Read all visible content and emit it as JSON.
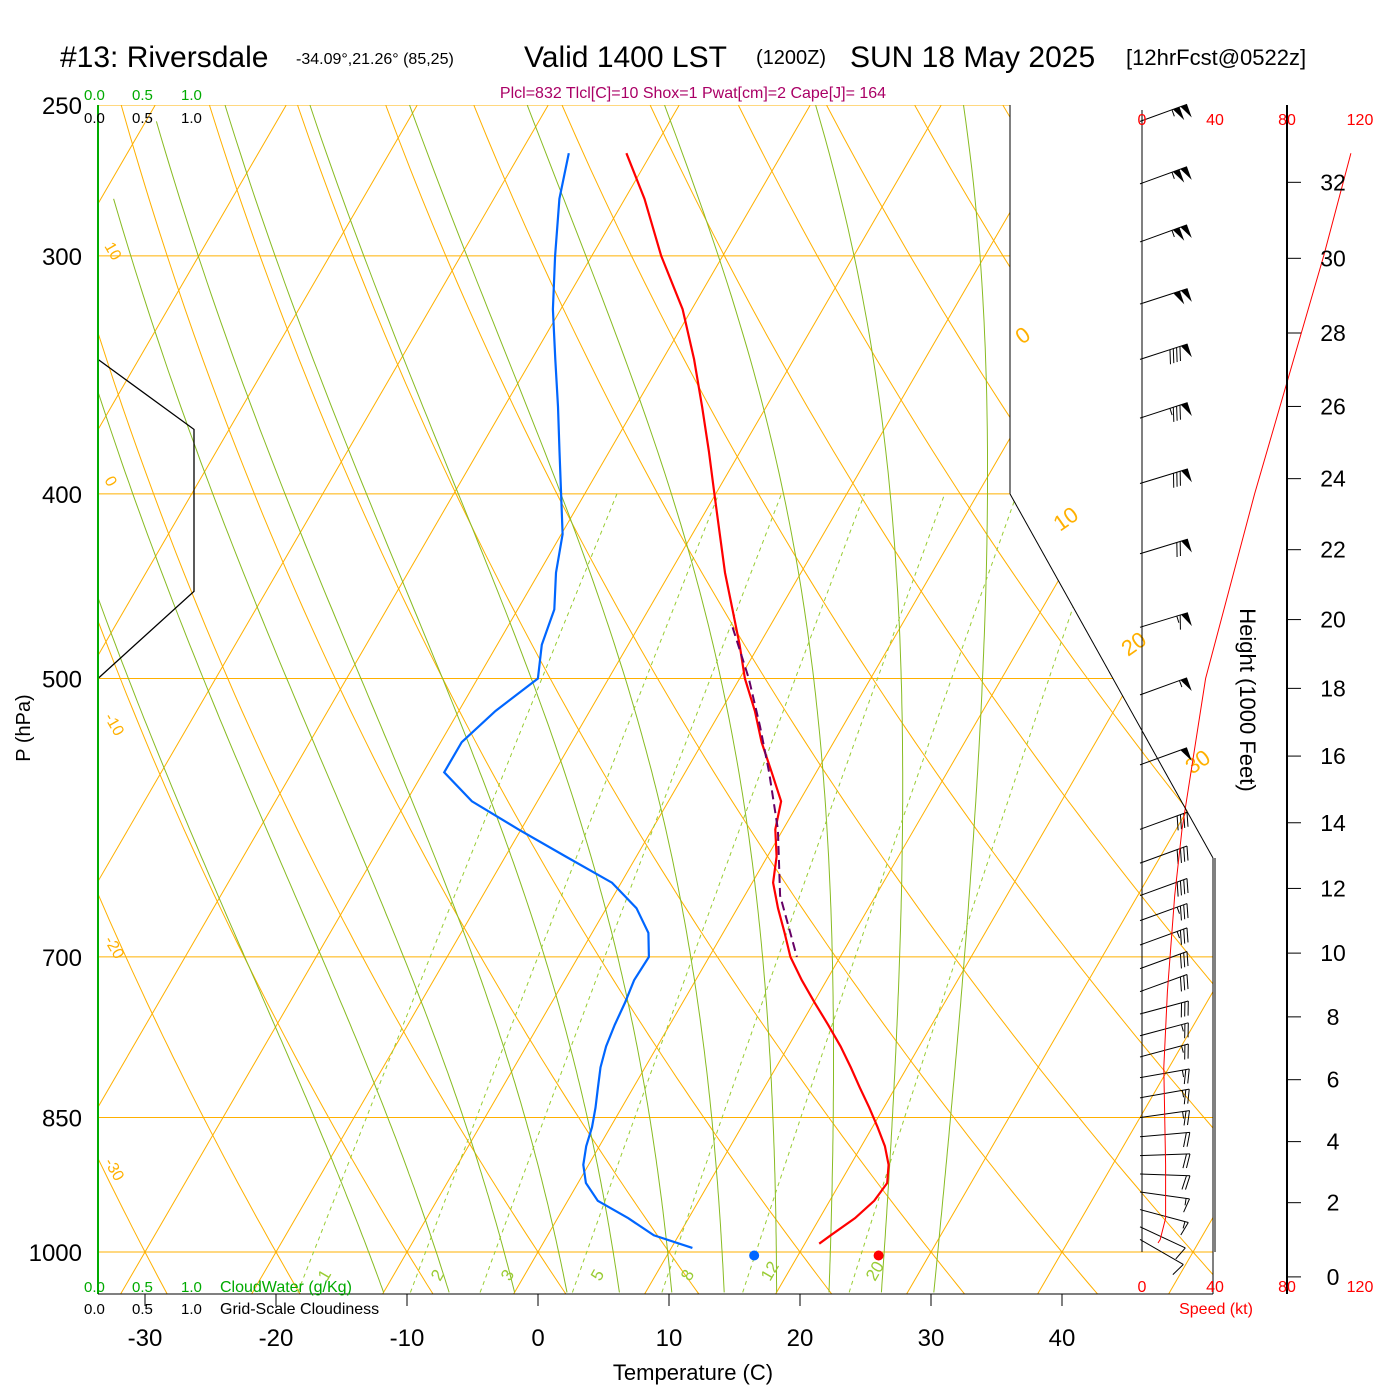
{
  "header": {
    "station": "#13: Riversdale",
    "coords": "-34.09°,21.26° (85,25)",
    "valid": "Valid 1400 LST",
    "zulu": "(1200Z)",
    "date": "SUN 18 May 2025",
    "forecast": "[12hrFcst@0522z]"
  },
  "indices": "Plcl=832 Tlcl[C]=10 Shox=1 Pwat[cm]=2 Cape[J]= 164",
  "cloud": {
    "scale_labels": [
      "0.0",
      "0.5",
      "1.0"
    ],
    "water_label": "CloudWater (g/Kg)",
    "cloudiness_label": "Grid-Scale Cloudiness"
  },
  "speed_axis": {
    "ticks": [
      "0",
      "40",
      "80",
      "120"
    ],
    "label": "Speed (kt)"
  },
  "colors": {
    "temperature": "#ff0000",
    "dewpoint": "#0066ff",
    "parcel": "#660066",
    "isotherms_isobars": "#ffb000",
    "dry_adiabats": "#99cc33",
    "moist_adiabats": "#88bb22",
    "mixing_ratio": "#99cc33",
    "cloudwater_axis": "#00aa00",
    "title_indices": "#aa0066",
    "speed": "#ff0000"
  },
  "chart_data": {
    "type": "skew-t",
    "xlabel": "Temperature (C)",
    "ylabel": "P (hPa)",
    "y2label": "Height (1000 Feet)",
    "x_ticks": [
      -30,
      -20,
      -10,
      0,
      10,
      20,
      30,
      40
    ],
    "p_levels": [
      250,
      300,
      400,
      500,
      700,
      850,
      1000
    ],
    "height_ticks_kft": [
      0,
      2,
      4,
      6,
      8,
      10,
      12,
      14,
      16,
      18,
      20,
      22,
      24,
      26,
      28,
      30,
      32
    ],
    "isotherm_labels": [
      "10",
      "0",
      "-10",
      "-20",
      "-30"
    ],
    "theta_labels": [
      "0",
      "10",
      "20",
      "30"
    ],
    "mixing_ratio_labels": [
      "1",
      "2",
      "3",
      "5",
      "8",
      "12",
      "20"
    ],
    "temperature_profile": [
      {
        "p": 265,
        "t": -41.9
      },
      {
        "p": 280,
        "t": -38.5
      },
      {
        "p": 300,
        "t": -34.7
      },
      {
        "p": 320,
        "t": -30.7
      },
      {
        "p": 340,
        "t": -27.6
      },
      {
        "p": 360,
        "t": -24.9
      },
      {
        "p": 380,
        "t": -22.4
      },
      {
        "p": 400,
        "t": -20.1
      },
      {
        "p": 420,
        "t": -17.9
      },
      {
        "p": 440,
        "t": -15.8
      },
      {
        "p": 460,
        "t": -13.6
      },
      {
        "p": 480,
        "t": -11.5
      },
      {
        "p": 500,
        "t": -9.6
      },
      {
        "p": 520,
        "t": -7.4
      },
      {
        "p": 540,
        "t": -5.5
      },
      {
        "p": 560,
        "t": -3.4
      },
      {
        "p": 580,
        "t": -1.4
      },
      {
        "p": 600,
        "t": -0.6
      },
      {
        "p": 620,
        "t": 0.7
      },
      {
        "p": 640,
        "t": 1.6
      },
      {
        "p": 660,
        "t": 3.1
      },
      {
        "p": 680,
        "t": 4.7
      },
      {
        "p": 700,
        "t": 6.2
      },
      {
        "p": 720,
        "t": 8.1
      },
      {
        "p": 740,
        "t": 10.1
      },
      {
        "p": 760,
        "t": 12.1
      },
      {
        "p": 780,
        "t": 14.0
      },
      {
        "p": 800,
        "t": 15.7
      },
      {
        "p": 820,
        "t": 17.3
      },
      {
        "p": 840,
        "t": 18.9
      },
      {
        "p": 860,
        "t": 20.4
      },
      {
        "p": 880,
        "t": 21.8
      },
      {
        "p": 900,
        "t": 22.9
      },
      {
        "p": 920,
        "t": 23.6
      },
      {
        "p": 940,
        "t": 23.4
      },
      {
        "p": 960,
        "t": 22.7
      },
      {
        "p": 980,
        "t": 21.6
      },
      {
        "p": 990,
        "t": 21.1
      }
    ],
    "dewpoint_profile": [
      {
        "p": 265,
        "t": -46.3
      },
      {
        "p": 280,
        "t": -45.0
      },
      {
        "p": 300,
        "t": -42.8
      },
      {
        "p": 320,
        "t": -40.6
      },
      {
        "p": 340,
        "t": -38.2
      },
      {
        "p": 360,
        "t": -35.9
      },
      {
        "p": 380,
        "t": -33.8
      },
      {
        "p": 400,
        "t": -31.8
      },
      {
        "p": 420,
        "t": -29.9
      },
      {
        "p": 440,
        "t": -28.7
      },
      {
        "p": 460,
        "t": -27.2
      },
      {
        "p": 480,
        "t": -26.6
      },
      {
        "p": 500,
        "t": -25.4
      },
      {
        "p": 520,
        "t": -27.2
      },
      {
        "p": 540,
        "t": -28.4
      },
      {
        "p": 560,
        "t": -28.4
      },
      {
        "p": 580,
        "t": -25.0
      },
      {
        "p": 600,
        "t": -20.2
      },
      {
        "p": 620,
        "t": -15.4
      },
      {
        "p": 640,
        "t": -10.7
      },
      {
        "p": 660,
        "t": -7.7
      },
      {
        "p": 680,
        "t": -5.7
      },
      {
        "p": 700,
        "t": -4.6
      },
      {
        "p": 720,
        "t": -4.7
      },
      {
        "p": 740,
        "t": -4.4
      },
      {
        "p": 760,
        "t": -4.2
      },
      {
        "p": 780,
        "t": -3.9
      },
      {
        "p": 800,
        "t": -3.4
      },
      {
        "p": 820,
        "t": -2.7
      },
      {
        "p": 840,
        "t": -2.0
      },
      {
        "p": 860,
        "t": -1.4
      },
      {
        "p": 880,
        "t": -1.0
      },
      {
        "p": 900,
        "t": -0.4
      },
      {
        "p": 920,
        "t": 0.6
      },
      {
        "p": 940,
        "t": 2.3
      },
      {
        "p": 960,
        "t": 5.4
      },
      {
        "p": 980,
        "t": 8.1
      },
      {
        "p": 995,
        "t": 11.6
      }
    ],
    "parcel_profile": [
      {
        "p": 470,
        "t": -12.8
      },
      {
        "p": 500,
        "t": -9.3
      },
      {
        "p": 530,
        "t": -6.3
      },
      {
        "p": 560,
        "t": -3.6
      },
      {
        "p": 600,
        "t": -0.4
      },
      {
        "p": 650,
        "t": 2.7
      },
      {
        "p": 700,
        "t": 6.7
      }
    ],
    "surface_temperature": {
      "p": 997,
      "t": 26
    },
    "surface_dewpoint": {
      "p": 997,
      "t": 16.5
    },
    "wind_barbs": [
      {
        "p": 255,
        "dir": 290,
        "kt": 105
      },
      {
        "p": 275,
        "dir": 290,
        "kt": 105
      },
      {
        "p": 295,
        "dir": 290,
        "kt": 105
      },
      {
        "p": 318,
        "dir": 288,
        "kt": 100
      },
      {
        "p": 340,
        "dir": 288,
        "kt": 90
      },
      {
        "p": 365,
        "dir": 288,
        "kt": 85
      },
      {
        "p": 395,
        "dir": 287,
        "kt": 80
      },
      {
        "p": 430,
        "dir": 287,
        "kt": 70
      },
      {
        "p": 470,
        "dir": 287,
        "kt": 65
      },
      {
        "p": 510,
        "dir": 290,
        "kt": 55
      },
      {
        "p": 555,
        "dir": 290,
        "kt": 50
      },
      {
        "p": 600,
        "dir": 290,
        "kt": 40
      },
      {
        "p": 625,
        "dir": 290,
        "kt": 40
      },
      {
        "p": 650,
        "dir": 290,
        "kt": 40
      },
      {
        "p": 670,
        "dir": 290,
        "kt": 35
      },
      {
        "p": 690,
        "dir": 290,
        "kt": 35
      },
      {
        "p": 710,
        "dir": 290,
        "kt": 30
      },
      {
        "p": 730,
        "dir": 290,
        "kt": 30
      },
      {
        "p": 750,
        "dir": 285,
        "kt": 30
      },
      {
        "p": 770,
        "dir": 285,
        "kt": 25
      },
      {
        "p": 790,
        "dir": 285,
        "kt": 25
      },
      {
        "p": 810,
        "dir": 280,
        "kt": 25
      },
      {
        "p": 830,
        "dir": 280,
        "kt": 25
      },
      {
        "p": 850,
        "dir": 278,
        "kt": 25
      },
      {
        "p": 870,
        "dir": 275,
        "kt": 20
      },
      {
        "p": 890,
        "dir": 272,
        "kt": 20
      },
      {
        "p": 910,
        "dir": 268,
        "kt": 20
      },
      {
        "p": 930,
        "dir": 262,
        "kt": 15
      },
      {
        "p": 950,
        "dir": 255,
        "kt": 15
      },
      {
        "p": 970,
        "dir": 245,
        "kt": 10
      },
      {
        "p": 985,
        "dir": 240,
        "kt": 10
      }
    ],
    "speed_profile_kt": [
      {
        "p": 992,
        "kt": 3
      },
      {
        "p": 985,
        "kt": 10
      },
      {
        "p": 960,
        "kt": 13
      },
      {
        "p": 900,
        "kt": 13
      },
      {
        "p": 800,
        "kt": 12
      },
      {
        "p": 730,
        "kt": 14
      },
      {
        "p": 650,
        "kt": 18
      },
      {
        "p": 600,
        "kt": 22
      },
      {
        "p": 500,
        "kt": 35
      },
      {
        "p": 400,
        "kt": 62
      },
      {
        "p": 300,
        "kt": 100
      },
      {
        "p": 265,
        "kt": 115
      }
    ],
    "cloud_water_gkg": [],
    "cloudiness_fraction": [
      {
        "p": 340,
        "value": 0.0
      },
      {
        "p": 370,
        "value": 0.74
      },
      {
        "p": 450,
        "value": 0.74
      },
      {
        "p": 500,
        "value": 0.0
      }
    ]
  }
}
